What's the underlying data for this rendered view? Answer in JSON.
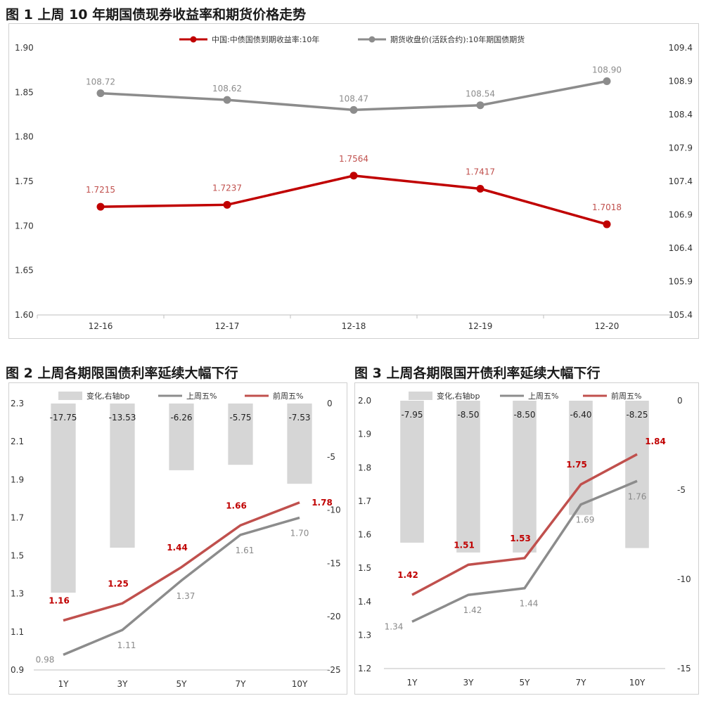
{
  "figures": [
    {
      "title": "图 1  上周 10 年期国债现券收益率和期货价格走势"
    },
    {
      "title": "图 2  上周各期限国债利率延续大幅下行"
    },
    {
      "title": "图 3  上周各期限国开债利率延续大幅下行"
    }
  ],
  "colors": {
    "red": "#c00000",
    "red_light": "#c0504d",
    "gray": "#8c8c8c",
    "bar": "#d6d6d6",
    "bar_label": "#222222"
  },
  "chart_data": [
    {
      "type": "line",
      "categories": [
        "12-16",
        "12-17",
        "12-18",
        "12-19",
        "12-20"
      ],
      "series": [
        {
          "name": "中国:中债国债到期收益率:10年",
          "axis": "left",
          "values": [
            1.7215,
            1.7237,
            1.7564,
            1.7417,
            1.7018
          ],
          "labels": [
            "1.7215",
            "1.7237",
            "1.7564",
            "1.7417",
            "1.7018"
          ]
        },
        {
          "name": "期货收盘价(活跃合约):10年期国债期货",
          "axis": "right",
          "values": [
            108.72,
            108.62,
            108.47,
            108.54,
            108.9
          ],
          "labels": [
            "108.72",
            "108.62",
            "108.47",
            "108.54",
            "108.90"
          ]
        }
      ],
      "y_left": {
        "min": 1.6,
        "max": 1.9,
        "ticks": [
          "1.60",
          "1.65",
          "1.70",
          "1.75",
          "1.80",
          "1.85",
          "1.90"
        ]
      },
      "y_right": {
        "min": 105.4,
        "max": 109.4,
        "ticks": [
          "105.4",
          "105.9",
          "106.4",
          "106.9",
          "107.4",
          "107.9",
          "108.4",
          "108.9",
          "109.4"
        ]
      },
      "legend": "top-center"
    },
    {
      "type": "bar",
      "categories": [
        "1Y",
        "3Y",
        "5Y",
        "7Y",
        "10Y"
      ],
      "bars": {
        "name": "变化,右轴bp",
        "values": [
          -17.75,
          -13.53,
          -6.26,
          -5.75,
          -7.53
        ],
        "labels": [
          "-17.75",
          "-13.53",
          "-6.26",
          "-5.75",
          "-7.53"
        ]
      },
      "series": [
        {
          "name": "上周五%",
          "values": [
            0.98,
            1.11,
            1.37,
            1.61,
            1.7
          ],
          "labels": [
            "0.98",
            "1.11",
            "1.37",
            "1.61",
            "1.70"
          ]
        },
        {
          "name": "前周五%",
          "values": [
            1.16,
            1.25,
            1.44,
            1.66,
            1.78
          ],
          "labels": [
            "1.16",
            "1.25",
            "1.44",
            "1.66",
            "1.78"
          ]
        }
      ],
      "y_left": {
        "min": 0.9,
        "max": 2.3,
        "ticks": [
          "0.9",
          "1.1",
          "1.3",
          "1.5",
          "1.7",
          "1.9",
          "2.1",
          "2.3"
        ]
      },
      "y_right": {
        "min": -25,
        "max": 0,
        "ticks": [
          "-25",
          "-20",
          "-15",
          "-10",
          "-5",
          "0"
        ]
      },
      "legend": "top"
    },
    {
      "type": "bar",
      "categories": [
        "1Y",
        "3Y",
        "5Y",
        "7Y",
        "10Y"
      ],
      "bars": {
        "name": "变化,右轴bp",
        "values": [
          -7.95,
          -8.5,
          -8.5,
          -6.4,
          -8.25
        ],
        "labels": [
          "-7.95",
          "-8.50",
          "-8.50",
          "-6.40",
          "-8.25"
        ]
      },
      "series": [
        {
          "name": "上周五%",
          "values": [
            1.34,
            1.42,
            1.44,
            1.69,
            1.76
          ],
          "labels": [
            "1.34",
            "1.42",
            "1.44",
            "1.69",
            "1.76"
          ]
        },
        {
          "name": "前周五%",
          "values": [
            1.42,
            1.51,
            1.53,
            1.75,
            1.84
          ],
          "labels": [
            "1.42",
            "1.51",
            "1.53",
            "1.75",
            "1.84"
          ]
        }
      ],
      "y_left": {
        "min": 1.2,
        "max": 2.0,
        "ticks": [
          "1.2",
          "1.3",
          "1.4",
          "1.5",
          "1.6",
          "1.7",
          "1.8",
          "1.9",
          "2.0"
        ]
      },
      "y_right": {
        "min": -15,
        "max": 0,
        "ticks": [
          "-15",
          "-10",
          "-5",
          "0"
        ]
      },
      "legend": "top"
    }
  ]
}
